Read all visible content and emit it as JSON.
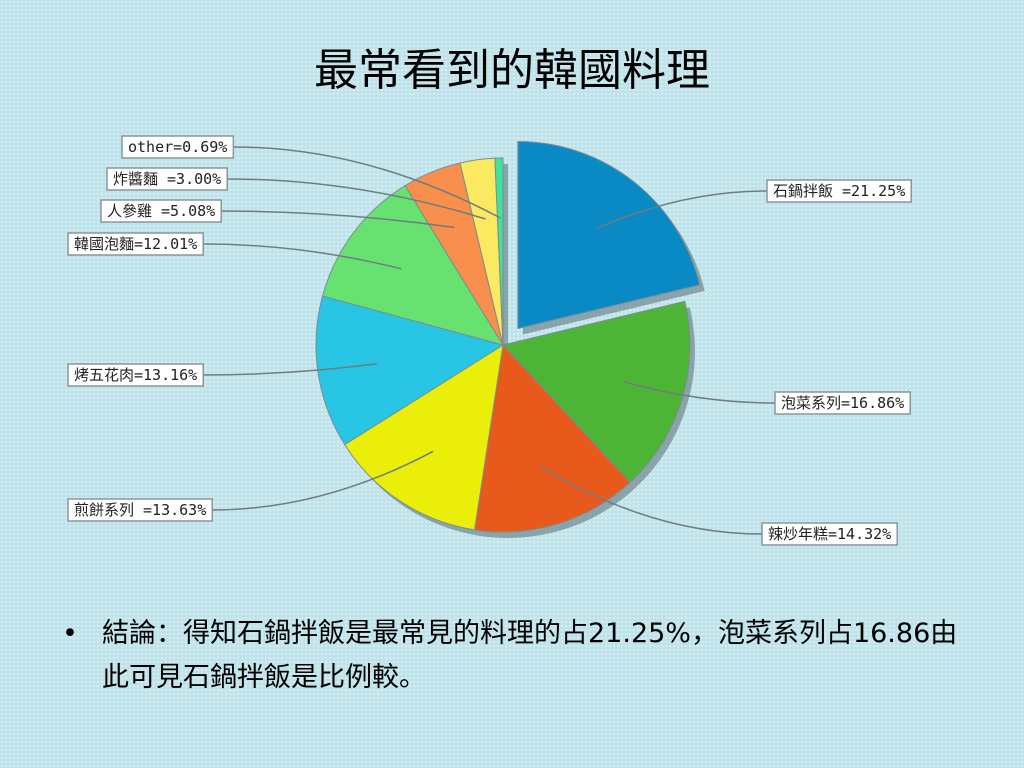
{
  "slide": {
    "title": "最常看到的韓國料理",
    "bullet_symbol": "•",
    "conclusion": "結論：得知石鍋拌飯是最常見的料理的占21.25%，泡菜系列占16.86由此可見石鍋拌飯是比例較。"
  },
  "chart_data": {
    "type": "pie",
    "title": "",
    "legend": "none",
    "exploded_slice": "石鍋拌飯",
    "slices": [
      {
        "name": "石鍋拌飯",
        "value": 21.25,
        "label": "石鍋拌飯 =21.25%",
        "color": "#0a8ac4"
      },
      {
        "name": "泡菜系列",
        "value": 16.86,
        "label": "泡菜系列=16.86%",
        "color": "#4db535"
      },
      {
        "name": "辣炒年糕",
        "value": 14.32,
        "label": "辣炒年糕=14.32%",
        "color": "#e85a1c"
      },
      {
        "name": "煎餅系列",
        "value": 13.63,
        "label": "煎餅系列 =13.63%",
        "color": "#eaee08"
      },
      {
        "name": "烤五花肉",
        "value": 13.16,
        "label": "烤五花肉=13.16%",
        "color": "#28c6e4"
      },
      {
        "name": "韓國泡麵",
        "value": 12.01,
        "label": "韓國泡麵=12.01%",
        "color": "#67e271"
      },
      {
        "name": "人參雞",
        "value": 5.08,
        "label": "人參雞 =5.08%",
        "color": "#f98f4c"
      },
      {
        "name": "炸醬麵",
        "value": 3.0,
        "label": "炸醬麵 =3.00%",
        "color": "#fbe962"
      },
      {
        "name": "other",
        "value": 0.69,
        "label": "other=0.69%",
        "color": "#3fe39a"
      }
    ]
  }
}
